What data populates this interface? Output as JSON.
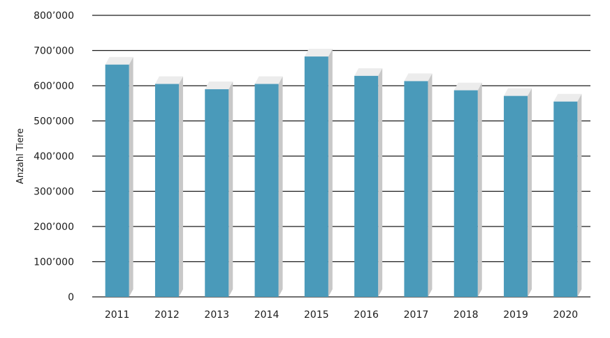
{
  "chart_data": {
    "type": "bar",
    "title": "",
    "xlabel": "",
    "ylabel": "Anzahl Tiere",
    "ylim": [
      0,
      800000
    ],
    "y_ticks": [
      0,
      100000,
      200000,
      300000,
      400000,
      500000,
      600000,
      700000,
      800000
    ],
    "y_tick_labels": [
      "0",
      "100’000",
      "200’000",
      "300’000",
      "400’000",
      "500’000",
      "600’000",
      "700’000",
      "800’000"
    ],
    "categories": [
      "2011",
      "2012",
      "2013",
      "2014",
      "2015",
      "2016",
      "2017",
      "2018",
      "2019",
      "2020"
    ],
    "values": [
      660000,
      605000,
      590000,
      605000,
      683000,
      628000,
      613000,
      587000,
      571000,
      555000
    ],
    "grid": true,
    "legend": "none",
    "bar_color": "#4a9aba",
    "bar_top_color": "#ececec",
    "bar_side_color": "#c8c8c8",
    "grid_color": "#1a1a1a"
  }
}
